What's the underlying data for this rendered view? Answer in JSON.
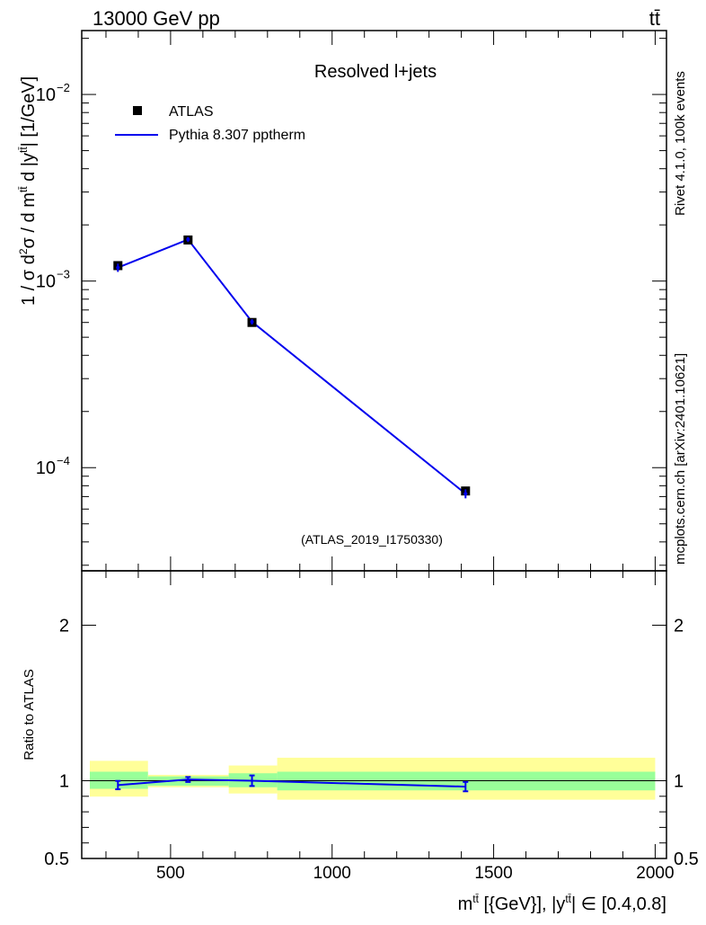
{
  "header": {
    "left": "13000 GeV pp",
    "right": "tt̄"
  },
  "side_labels": {
    "rivet": "Rivet 4.1.0,  100k events",
    "mcplots": "mcplots.cern.ch [arXiv:2401.10621]"
  },
  "colors": {
    "mc_line": "#0000ee",
    "band_inner": "#99ff99",
    "band_outer": "#ffff99",
    "data_marker": "#000000",
    "watermark": "#999999"
  },
  "chart_data": [
    {
      "type": "line",
      "panel": "main",
      "title": "Resolved l+jets",
      "watermark": "(ATLAS_2019_I1750330)",
      "ylabel": "1 / σ d²σ / d m^{t̄t} d |y^{t̄t}| [1/GeV]",
      "yscale": "log",
      "xlim": [
        225,
        2035
      ],
      "ylim": [
        2.8e-05,
        0.022
      ],
      "ytick_labels": [
        {
          "value": 0.0001,
          "label": "10",
          "exp": "−4"
        },
        {
          "value": 0.001,
          "label": "10",
          "exp": "−3"
        },
        {
          "value": 0.01,
          "label": "10",
          "exp": "−2"
        }
      ],
      "legend": {
        "position": "top-left",
        "entries": [
          {
            "name": "ATLAS",
            "marker": "square"
          },
          {
            "name": "Pythia 8.307 pptherm",
            "marker": "line"
          }
        ]
      },
      "series": [
        {
          "name": "ATLAS",
          "x": [
            337,
            554,
            752,
            1413
          ],
          "bins": [
            [
              250,
              430
            ],
            [
              430,
              680
            ],
            [
              680,
              830
            ],
            [
              830,
              2000
            ]
          ],
          "values": [
            0.00121,
            0.00166,
            0.0006,
            7.5e-05
          ]
        },
        {
          "name": "Pythia 8.307 pptherm",
          "x": [
            337,
            554,
            752,
            1413
          ],
          "values": [
            0.00118,
            0.00167,
            0.000605,
            7.25e-05
          ],
          "err_low": [
            0.00112,
            0.00162,
            0.000585,
            6.85e-05
          ],
          "err_high": [
            0.00124,
            0.00172,
            0.000625,
            7.65e-05
          ]
        }
      ]
    },
    {
      "type": "line",
      "panel": "ratio",
      "ylabel": "Ratio to ATLAS",
      "xlabel": "m^{t̄t} [{GeV}], |y^{t̄t}| ∈ [0.4,0.8]",
      "xlim": [
        225,
        2035
      ],
      "ylim": [
        0.5,
        2.35
      ],
      "ytick_labels": [
        {
          "value": 0.5,
          "label": "0.5"
        },
        {
          "value": 1,
          "label": "1"
        },
        {
          "value": 2,
          "label": "2"
        }
      ],
      "xtick_labels": [
        {
          "value": 500,
          "label": "500"
        },
        {
          "value": 1000,
          "label": "1000"
        },
        {
          "value": 1500,
          "label": "1500"
        },
        {
          "value": 2000,
          "label": "2000"
        }
      ],
      "bands": [
        {
          "x0": 250,
          "x1": 430,
          "inner": [
            0.948,
            1.058
          ],
          "outer": [
            0.898,
            1.128
          ]
        },
        {
          "x0": 430,
          "x1": 680,
          "inner": [
            0.968,
            1.028
          ],
          "outer": [
            0.958,
            1.038
          ]
        },
        {
          "x0": 680,
          "x1": 830,
          "inner": [
            0.958,
            1.048
          ],
          "outer": [
            0.918,
            1.098
          ]
        },
        {
          "x0": 830,
          "x1": 2000,
          "inner": [
            0.938,
            1.058
          ],
          "outer": [
            0.878,
            1.148
          ]
        }
      ],
      "series": [
        {
          "name": "Pythia 8.307 pptherm",
          "x": [
            337,
            554,
            752,
            1413
          ],
          "values": [
            0.972,
            1.008,
            1.0,
            0.962
          ],
          "err_low": [
            0.945,
            0.992,
            0.966,
            0.932
          ],
          "err_high": [
            0.999,
            1.024,
            1.034,
            0.992
          ]
        }
      ]
    }
  ]
}
